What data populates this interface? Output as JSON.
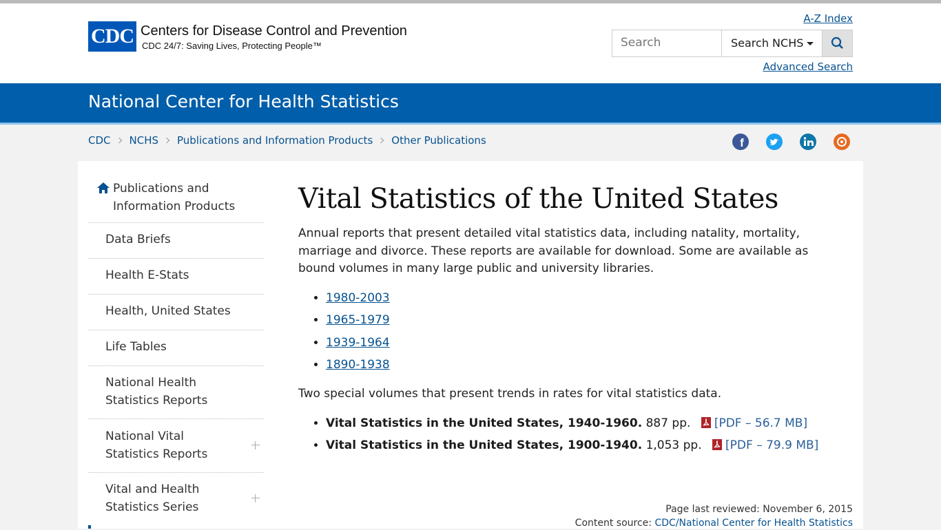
{
  "header": {
    "logo": "CDC",
    "org": "Centers for Disease Control and Prevention",
    "tagline": "CDC 24/7: Saving Lives, Protecting People™",
    "az_index": "A-Z Index",
    "search_placeholder": "Search",
    "search_scope": "Search NCHS",
    "advanced_search": "Advanced Search"
  },
  "banner": {
    "title": "National Center for Health Statistics"
  },
  "breadcrumbs": [
    "CDC",
    "NCHS",
    "Publications and Information Products",
    "Other Publications"
  ],
  "sidebar": {
    "home": "Publications and Information Products",
    "items": [
      "Data Briefs",
      "Health E-Stats",
      "Health, United States",
      "Life Tables",
      "National Health Statistics Reports",
      "National Vital Statistics Reports",
      "Vital and Health Statistics Series"
    ]
  },
  "main": {
    "title": "Vital Statistics of the United States",
    "intro": "Annual reports that present detailed vital statistics data, including natality, mortality, marriage and divorce. These reports are available for download. Some are available as bound volumes in many large public and university libraries.",
    "links": [
      "1980-2003",
      "1965-1979",
      "1939-1964",
      "1890-1938"
    ],
    "special_intro": "Two special volumes that present trends in rates for vital statistics data.",
    "special": [
      {
        "title": "Vital Statistics in the United States, 1940-1960.",
        "pages": "887 pp.",
        "pdf": "[PDF – 56.7 MB]"
      },
      {
        "title": "Vital Statistics in the United States, 1900-1940.",
        "pages": "1,053 pp.",
        "pdf": "[PDF – 79.9 MB]"
      }
    ]
  },
  "footer": {
    "reviewed": "Page last reviewed: November 6, 2015",
    "source_label": "Content source:",
    "source": "CDC/National Center for Health Statistics"
  }
}
